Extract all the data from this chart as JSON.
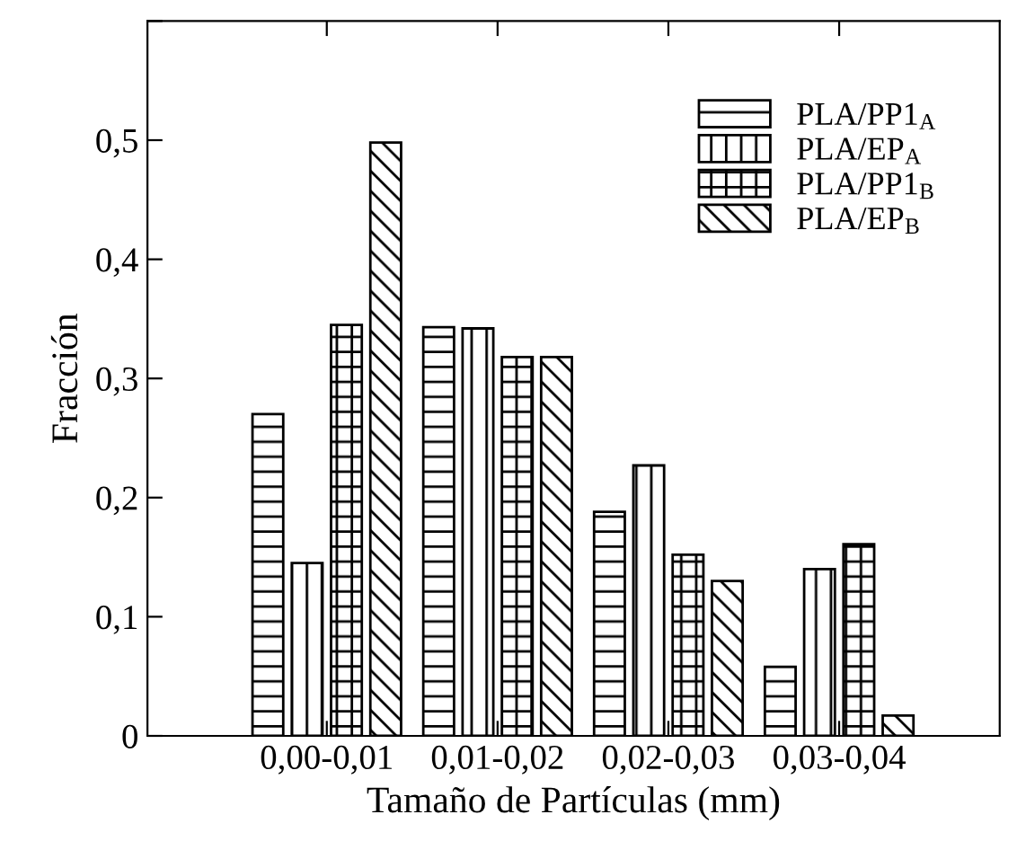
{
  "chart_data": {
    "type": "bar",
    "xlabel": "Tamaño de Partículas (mm)",
    "ylabel": "Fracción",
    "categories": [
      "0,00-0,01",
      "0,01-0,02",
      "0,02-0,03",
      "0,03-0,04"
    ],
    "series": [
      {
        "name": "PLA/PP1$_{A}$",
        "color": "#000000",
        "values": [
          0.27,
          0.343,
          0.188,
          0.058
        ]
      },
      {
        "name": "PLA/EP$_{A}$",
        "color": "#000000",
        "values": [
          0.145,
          0.342,
          0.227,
          0.14
        ]
      },
      {
        "name": "PLA/PP1$_{B}$",
        "color": "#000000",
        "values": [
          0.345,
          0.318,
          0.152,
          0.161
        ]
      },
      {
        "name": "PLA/EP$_{B}$",
        "color": "#000000",
        "values": [
          0.498,
          0.318,
          0.13,
          0.017
        ]
      }
    ],
    "ylim": [
      0,
      0.6
    ],
    "yticks": [
      0,
      {
        "value": 0.1,
        "label": "0,1"
      },
      {
        "value": 0.2,
        "label": "0,2"
      },
      {
        "value": 0.3,
        "label": "0,3"
      },
      {
        "value": 0.4,
        "label": "0,4"
      },
      {
        "value": 0.5,
        "label": "0,5"
      },
      {
        "value": 0.6,
        "label": null
      }
    ],
    "legend": "top right",
    "grid": false
  }
}
